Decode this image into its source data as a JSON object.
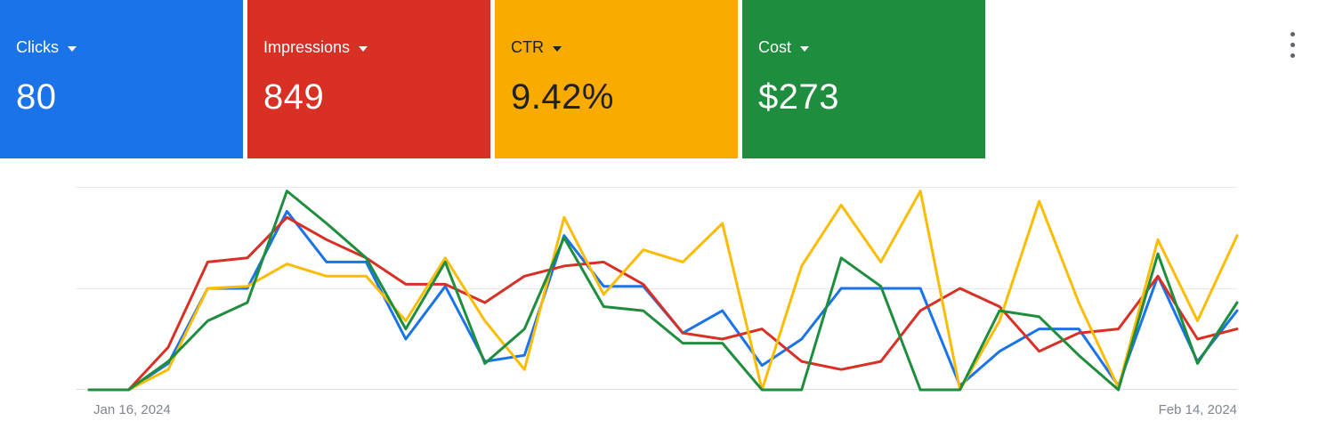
{
  "metric_cards": [
    {
      "key": "clicks",
      "label": "Clicks",
      "value": "80",
      "bg_color": "#1a73e8",
      "text_color": "#ffffff"
    },
    {
      "key": "impressions",
      "label": "Impressions",
      "value": "849",
      "bg_color": "#d93025",
      "text_color": "#ffffff"
    },
    {
      "key": "ctr",
      "label": "CTR",
      "value": "9.42%",
      "bg_color": "#f9ab00",
      "text_color": "#202124"
    },
    {
      "key": "cost",
      "label": "Cost",
      "value": "$273",
      "bg_color": "#1e8e3e",
      "text_color": "#ffffff"
    }
  ],
  "toolbar": {
    "more_options_icon": "kebab-menu-icon"
  },
  "chart_data": {
    "type": "line",
    "title": "",
    "x_axis": {
      "start_label": "Jan 16, 2024",
      "end_label": "Feb 14, 2024",
      "n_points": 30,
      "unit": "day"
    },
    "y_axis": {
      "tick_labels_visible": false,
      "ylim": [
        0,
        1
      ],
      "note": "No numeric y ticks shown; each series normalized 0-1 to its own scale (values estimated from pixel positions)"
    },
    "grid": {
      "horizontal_lines": 3,
      "color": "#e9e9e9",
      "vertical_lines": 0
    },
    "legend": "none (line colors match metric card colors)",
    "series": [
      {
        "key": "clicks",
        "name": "Clicks",
        "color": "#1a73e8",
        "values": [
          0,
          0,
          0.13,
          0.5,
          0.5,
          0.88,
          0.63,
          0.63,
          0.25,
          0.51,
          0.14,
          0.17,
          0.76,
          0.51,
          0.51,
          0.28,
          0.39,
          0.12,
          0.25,
          0.5,
          0.5,
          0.5,
          0.02,
          0.19,
          0.3,
          0.3,
          0.02,
          0.56,
          0.14,
          0.39
        ]
      },
      {
        "key": "impressions",
        "name": "Impressions",
        "color": "#d93025",
        "values": [
          0,
          0,
          0.21,
          0.63,
          0.65,
          0.85,
          0.74,
          0.65,
          0.52,
          0.52,
          0.43,
          0.56,
          0.61,
          0.63,
          0.52,
          0.28,
          0.25,
          0.3,
          0.14,
          0.1,
          0.14,
          0.39,
          0.5,
          0.41,
          0.19,
          0.28,
          0.3,
          0.56,
          0.25,
          0.3
        ]
      },
      {
        "key": "ctr",
        "name": "CTR",
        "color": "#fbbc04",
        "values": [
          0,
          0,
          0.1,
          0.5,
          0.51,
          0.62,
          0.56,
          0.56,
          0.34,
          0.65,
          0.34,
          0.1,
          0.85,
          0.47,
          0.69,
          0.63,
          0.82,
          0,
          0.61,
          0.91,
          0.63,
          0.98,
          0,
          0.34,
          0.93,
          0.43,
          0.01,
          0.74,
          0.34,
          0.76
        ]
      },
      {
        "key": "cost",
        "name": "Cost",
        "color": "#1e8e3e",
        "values": [
          0,
          0,
          0.14,
          0.34,
          0.43,
          0.98,
          0.82,
          0.65,
          0.3,
          0.63,
          0.13,
          0.3,
          0.75,
          0.41,
          0.39,
          0.23,
          0.23,
          0,
          0,
          0.65,
          0.51,
          0,
          0,
          0.39,
          0.36,
          0.17,
          0,
          0.67,
          0.13,
          0.43
        ]
      }
    ]
  }
}
